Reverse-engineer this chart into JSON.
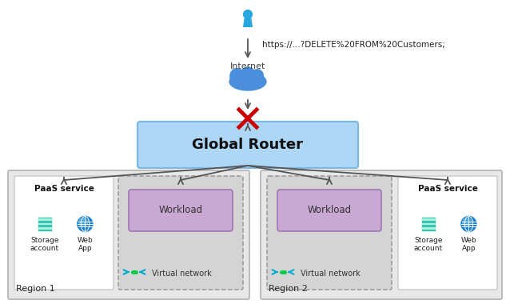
{
  "bg_color": "#ffffff",
  "url_text": "https://...?DELETE%20FROM%20Customers;",
  "internet_label": "Internet",
  "router_label": "Global Router",
  "router_box_color": "#aed6f5",
  "router_box_edge": "#7ab8e8",
  "region1_label": "Region 1",
  "region2_label": "Region 2",
  "region_bg": "#e8e8e8",
  "region_edge": "#bbbbbb",
  "paas_label": "PaaS service",
  "vnet_label": "Virtual network",
  "workload_label": "Workload",
  "workload_box_color": "#c9a8d4",
  "workload_box_edge": "#9b72b0",
  "vnet_bg": "#d4d4d4",
  "paas_bg": "#ffffff",
  "storage_label": "Storage\naccount",
  "webapp_label": "Web\nApp",
  "arrow_color": "#555555",
  "x_color": "#cc0000",
  "person_color": "#29a8e0",
  "cloud_color": "#4a8fdb",
  "cloud_dark": "#2a6fbb",
  "vnet_icon_color": "#00aacc",
  "vnet_icon_dot": "#00cc44"
}
